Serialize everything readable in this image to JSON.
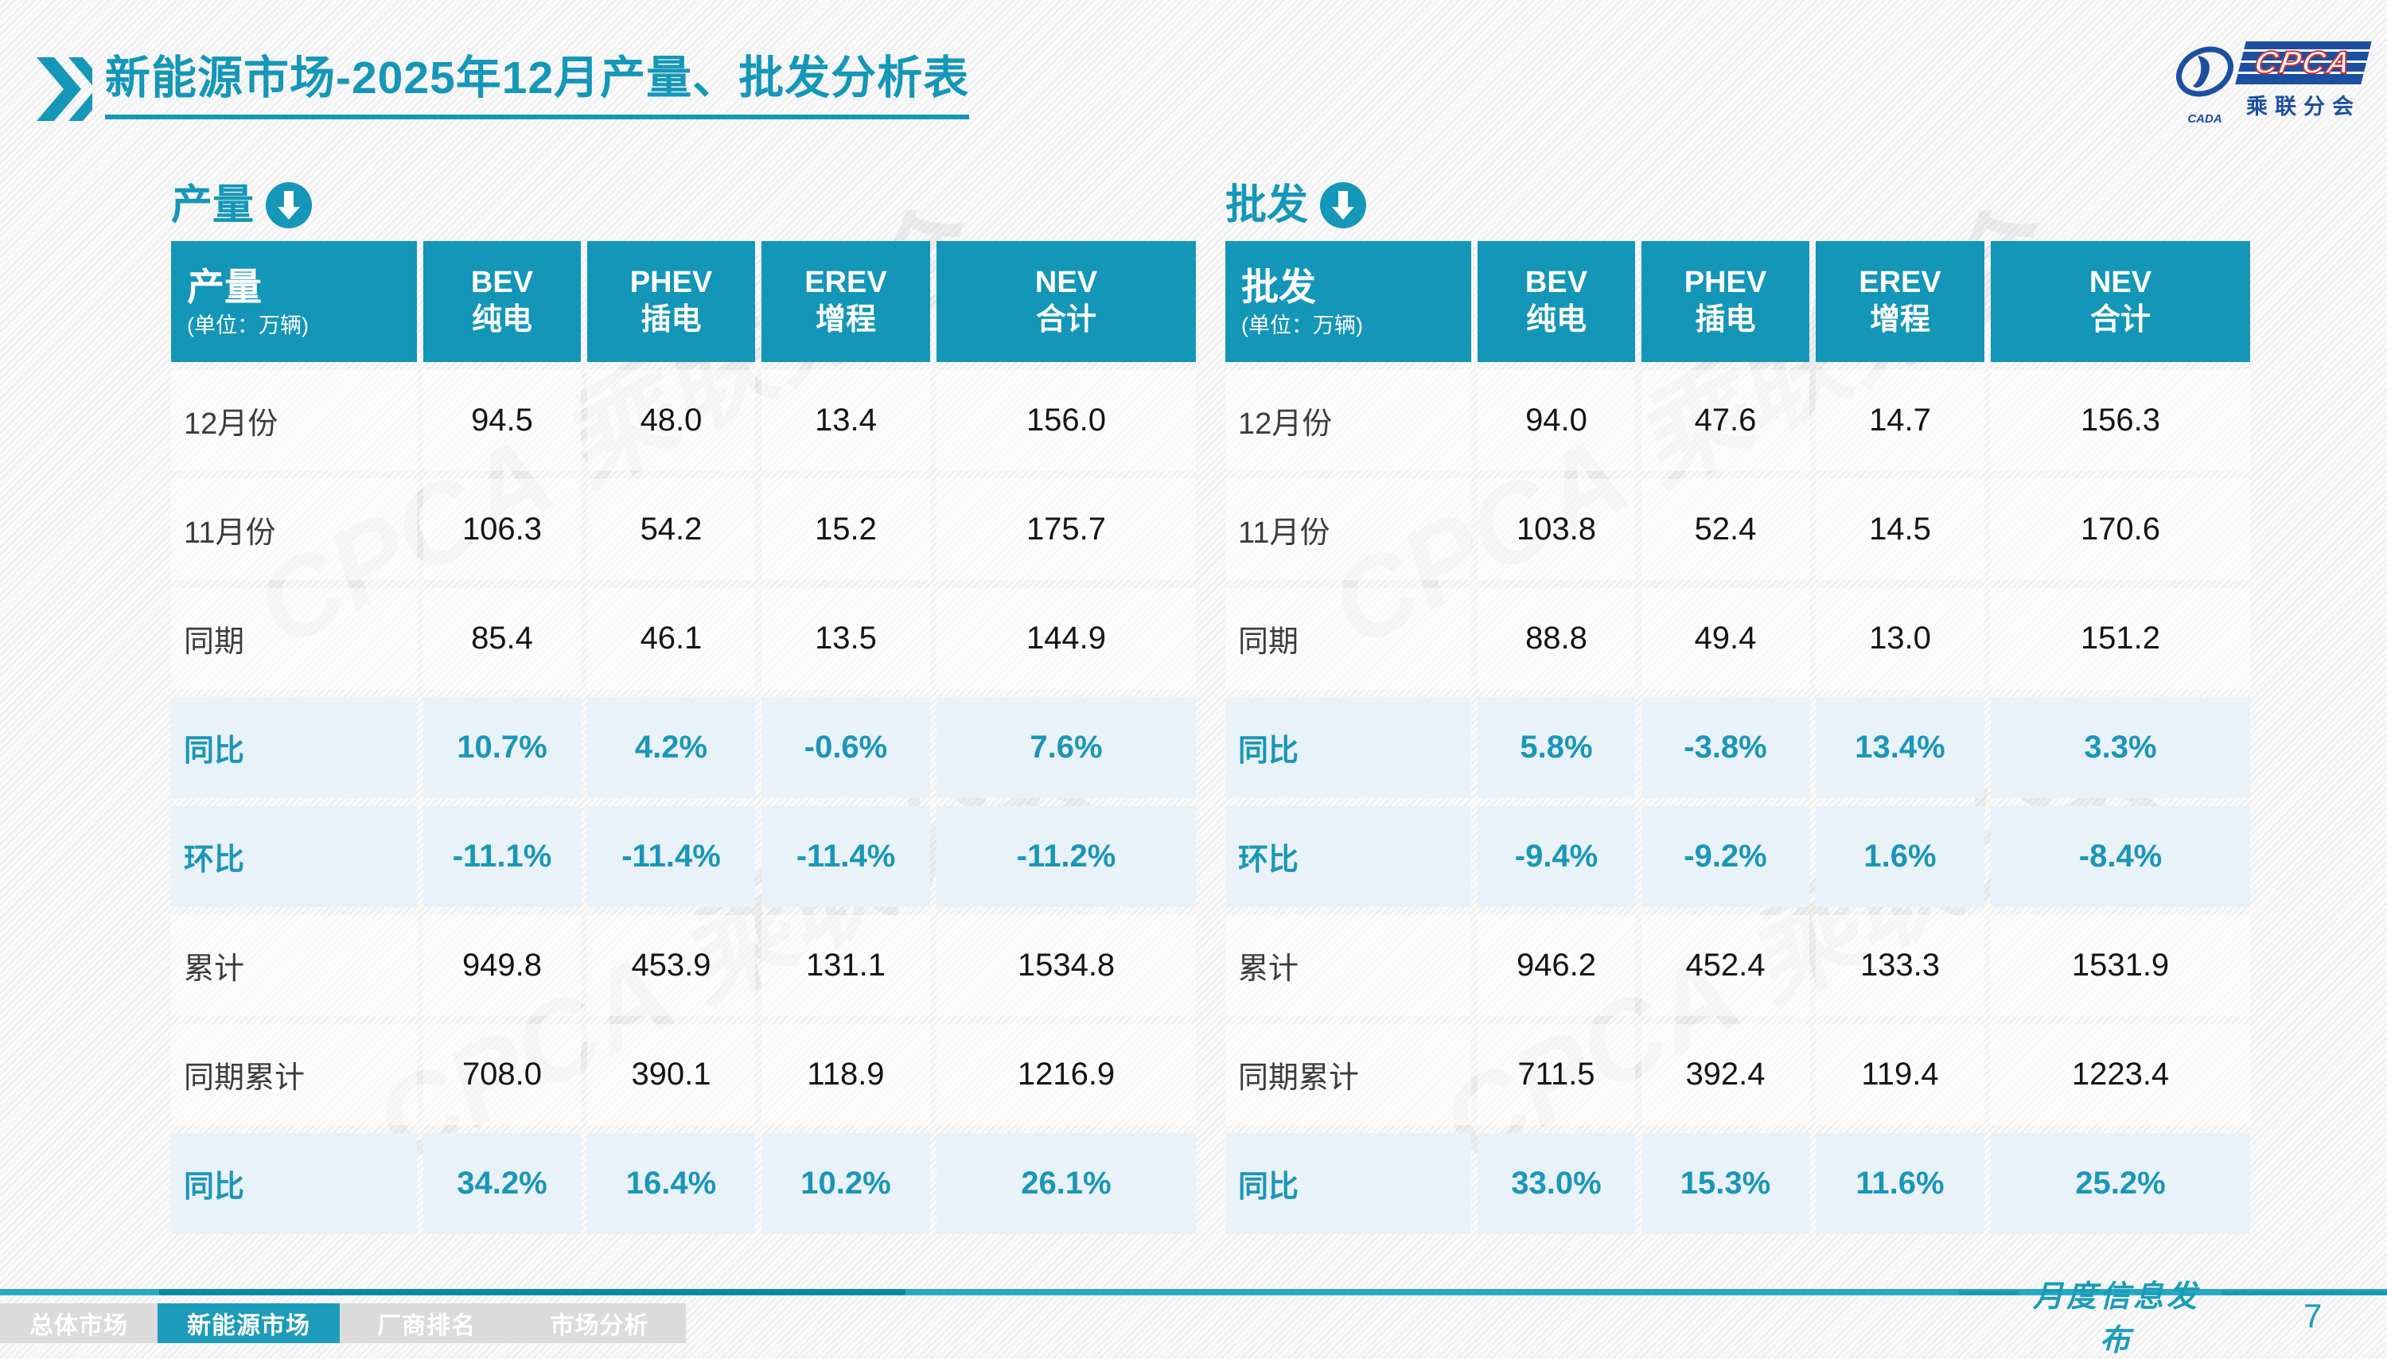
{
  "title": {
    "highlight": "新能源市场",
    "rest": "-2025年12月产量、批发分析表"
  },
  "logo": {
    "acronym": "CPCA",
    "cname": "乘联分会",
    "sub": "CADA"
  },
  "watermark": {
    "text": "CPCA 乘联分会"
  },
  "colors": {
    "primary_teal": "#1497B8",
    "header_bg": "#1396B8",
    "highlight_bg": "#E9F2F8",
    "highlight_text": "#1A96B8",
    "nav_active": "#1C9CBA",
    "logo_blue": "#1D4FA0",
    "logo_red": "#D03030"
  },
  "tables": [
    {
      "section_label": "产量",
      "header": {
        "title": "产量",
        "unit": "(单位：万辆)",
        "columns": [
          {
            "l1": "BEV",
            "l2": "纯电"
          },
          {
            "l1": "PHEV",
            "l2": "插电"
          },
          {
            "l1": "EREV",
            "l2": "增程"
          },
          {
            "l1": "NEV",
            "l2": "合计"
          }
        ]
      },
      "rows": [
        {
          "label": "12月份",
          "type": "normal",
          "values": [
            "94.5",
            "48.0",
            "13.4",
            "156.0"
          ]
        },
        {
          "label": "11月份",
          "type": "normal",
          "values": [
            "106.3",
            "54.2",
            "15.2",
            "175.7"
          ]
        },
        {
          "label": "同期",
          "type": "normal",
          "values": [
            "85.4",
            "46.1",
            "13.5",
            "144.9"
          ]
        },
        {
          "label": "同比",
          "type": "highlight",
          "values": [
            "10.7%",
            "4.2%",
            "-0.6%",
            "7.6%"
          ]
        },
        {
          "label": "环比",
          "type": "highlight",
          "values": [
            "-11.1%",
            "-11.4%",
            "-11.4%",
            "-11.2%"
          ]
        },
        {
          "label": "累计",
          "type": "normal",
          "values": [
            "949.8",
            "453.9",
            "131.1",
            "1534.8"
          ]
        },
        {
          "label": "同期累计",
          "type": "normal",
          "values": [
            "708.0",
            "390.1",
            "118.9",
            "1216.9"
          ]
        },
        {
          "label": "同比",
          "type": "highlight",
          "values": [
            "34.2%",
            "16.4%",
            "10.2%",
            "26.1%"
          ]
        }
      ]
    },
    {
      "section_label": "批发",
      "header": {
        "title": "批发",
        "unit": "(单位：万辆)",
        "columns": [
          {
            "l1": "BEV",
            "l2": "纯电"
          },
          {
            "l1": "PHEV",
            "l2": "插电"
          },
          {
            "l1": "EREV",
            "l2": "增程"
          },
          {
            "l1": "NEV",
            "l2": "合计"
          }
        ]
      },
      "rows": [
        {
          "label": "12月份",
          "type": "normal",
          "values": [
            "94.0",
            "47.6",
            "14.7",
            "156.3"
          ]
        },
        {
          "label": "11月份",
          "type": "normal",
          "values": [
            "103.8",
            "52.4",
            "14.5",
            "170.6"
          ]
        },
        {
          "label": "同期",
          "type": "normal",
          "values": [
            "88.8",
            "49.4",
            "13.0",
            "151.2"
          ]
        },
        {
          "label": "同比",
          "type": "highlight",
          "values": [
            "5.8%",
            "-3.8%",
            "13.4%",
            "3.3%"
          ]
        },
        {
          "label": "环比",
          "type": "highlight",
          "values": [
            "-9.4%",
            "-9.2%",
            "1.6%",
            "-8.4%"
          ]
        },
        {
          "label": "累计",
          "type": "normal",
          "values": [
            "946.2",
            "452.4",
            "133.3",
            "1531.9"
          ]
        },
        {
          "label": "同期累计",
          "type": "normal",
          "values": [
            "711.5",
            "392.4",
            "119.4",
            "1223.4"
          ]
        },
        {
          "label": "同比",
          "type": "highlight",
          "values": [
            "33.0%",
            "15.3%",
            "11.6%",
            "25.2%"
          ]
        }
      ]
    }
  ],
  "footer": {
    "nav": [
      {
        "label": "总体市场",
        "active": false
      },
      {
        "label": "新能源市场",
        "active": true
      },
      {
        "label": "厂商排名",
        "active": false
      },
      {
        "label": "市场分析",
        "active": false
      }
    ],
    "publication": "月度信息发布",
    "page": "7"
  }
}
